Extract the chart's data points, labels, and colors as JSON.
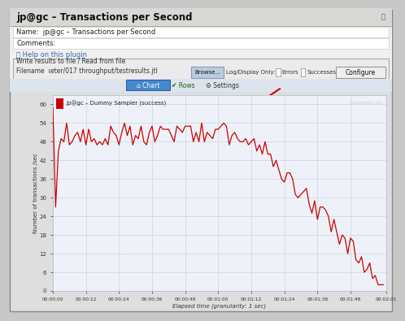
{
  "title": "jp@gc – Transactions per Second",
  "name_label": "Name:  jp@gc – Transactions per Second",
  "comments_label": "Comments:",
  "help_text": "ⓘ Help on this plugin",
  "write_label": "Write results to file / Read from file",
  "filename_label": "Filename  ιeter/017 throughput/testresults.jtl",
  "legend_label": "jp@gc – Dummy Sampler (success)",
  "ylabel": "Number of transactions /sec",
  "xlabel": "Elapsed time (granularity: 1 sec)",
  "line_color": "#cc0000",
  "title_bg": "#e0e0dc",
  "panel_bg": "#ebebeb",
  "inner_bg": "#f5f5f5",
  "chart_bg": "#eef2f8",
  "grid_color": "#c8d4e0",
  "outer_border": "#b0b0b0",
  "ylim": [
    0,
    63
  ],
  "yticks": [
    0,
    6,
    12,
    18,
    24,
    30,
    36,
    42,
    48,
    54,
    60
  ],
  "xtick_labels": [
    "00:00:00",
    "00:00:12",
    "00:00:24",
    "00:00:36",
    "00:00:48",
    "00:01:00",
    "00:01:12",
    "00:01:24",
    "00:01:36",
    "00:01:48",
    "00:02:01"
  ],
  "total_seconds": 121,
  "watermark": "blazemeter.com"
}
